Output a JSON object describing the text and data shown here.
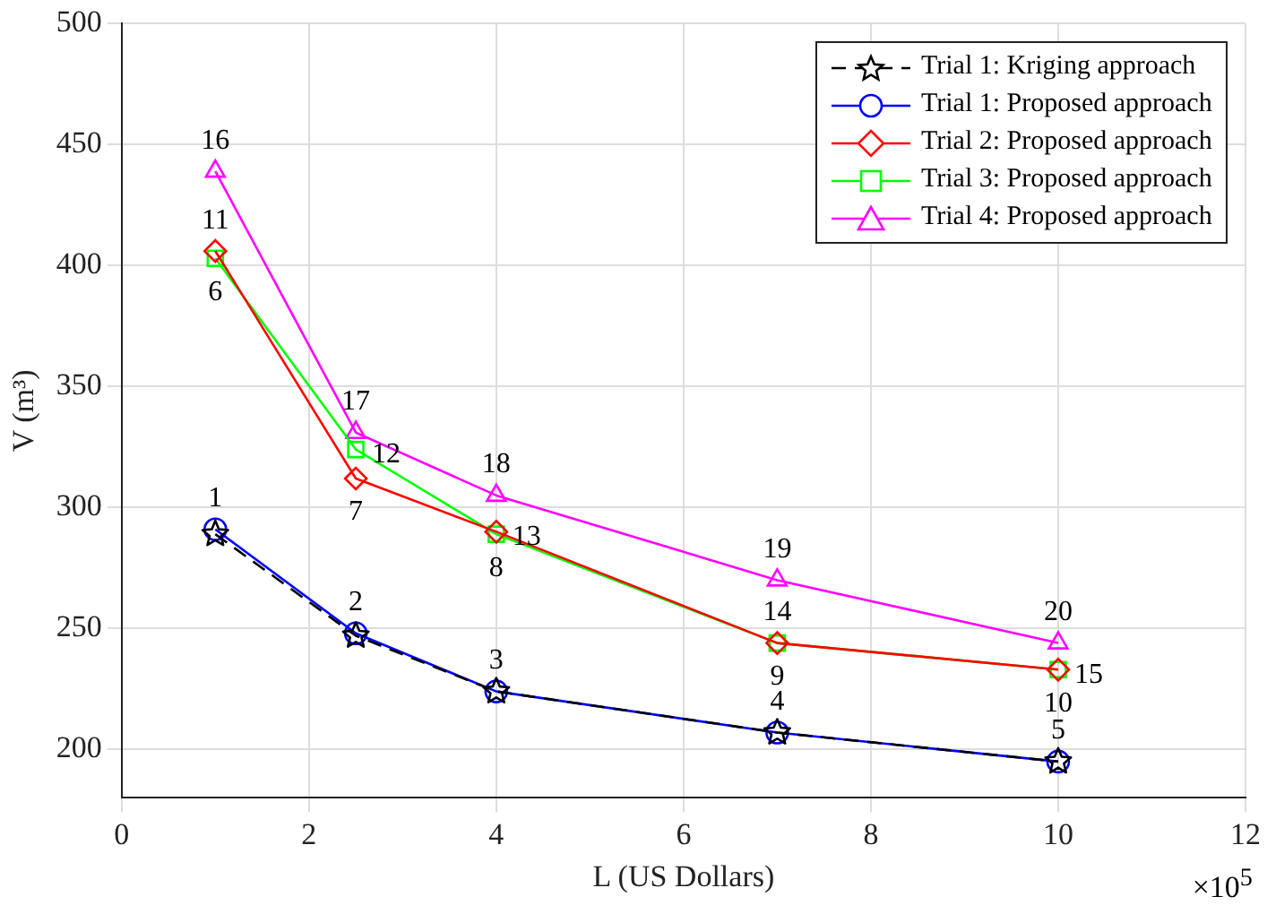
{
  "chart_data": {
    "type": "line",
    "xlabel": "L (US Dollars)",
    "ylabel": "V (m³)",
    "x": [
      1,
      2.5,
      4,
      7,
      10
    ],
    "xlim": [
      0,
      12
    ],
    "xticks": [
      0,
      2,
      4,
      6,
      8,
      10,
      12
    ],
    "ylim": [
      180,
      500
    ],
    "yticks": [
      200,
      250,
      300,
      350,
      400,
      450,
      500
    ],
    "grid": true,
    "legend": "top right",
    "series": [
      {
        "name": "Trial 1: Kriging approach",
        "color": "#000000",
        "marker": "star",
        "line_style": "dashed",
        "values": [
          289,
          247,
          224,
          207,
          195
        ]
      },
      {
        "name": "Trial 1: Proposed approach",
        "color": "#0000ff",
        "marker": "circle",
        "values": [
          291,
          248,
          224,
          207,
          195
        ]
      },
      {
        "name": "Trial 2: Proposed approach",
        "color": "#ff0000",
        "marker": "diamond",
        "values": [
          406,
          312,
          290,
          244,
          233
        ]
      },
      {
        "name": "Trial 3: Proposed approach",
        "color": "#00ff00",
        "marker": "square",
        "values": [
          403,
          324,
          289,
          244,
          233
        ]
      },
      {
        "name": "Trial 4: Proposed approach",
        "color": "#ff00ff",
        "marker": "triangle",
        "values": [
          439,
          331,
          305,
          270,
          244
        ]
      }
    ],
    "annotations": [
      {
        "text": "1",
        "x": 1,
        "y": 291
      },
      {
        "text": "2",
        "x": 2.5,
        "y": 248
      },
      {
        "text": "3",
        "x": 4,
        "y": 224
      },
      {
        "text": "4",
        "x": 7,
        "y": 207
      },
      {
        "text": "5",
        "x": 10,
        "y": 195
      },
      {
        "text": "6",
        "x": 1,
        "y": 403
      },
      {
        "text": "7",
        "x": 2.5,
        "y": 312
      },
      {
        "text": "8",
        "x": 4,
        "y": 289
      },
      {
        "text": "9",
        "x": 7,
        "y": 244
      },
      {
        "text": "10",
        "x": 10,
        "y": 233
      },
      {
        "text": "11",
        "x": 1,
        "y": 406
      },
      {
        "text": "12",
        "x": 2.5,
        "y": 324
      },
      {
        "text": "13",
        "x": 4,
        "y": 290
      },
      {
        "text": "14",
        "x": 7,
        "y": 244
      },
      {
        "text": "15",
        "x": 10,
        "y": 233
      },
      {
        "text": "16",
        "x": 1,
        "y": 439
      },
      {
        "text": "17",
        "x": 2.5,
        "y": 331
      },
      {
        "text": "18",
        "x": 4,
        "y": 305
      },
      {
        "text": "19",
        "x": 7,
        "y": 270
      },
      {
        "text": "20",
        "x": 10,
        "y": 244
      },
      "×10$^{5}$"
    ]
  }
}
